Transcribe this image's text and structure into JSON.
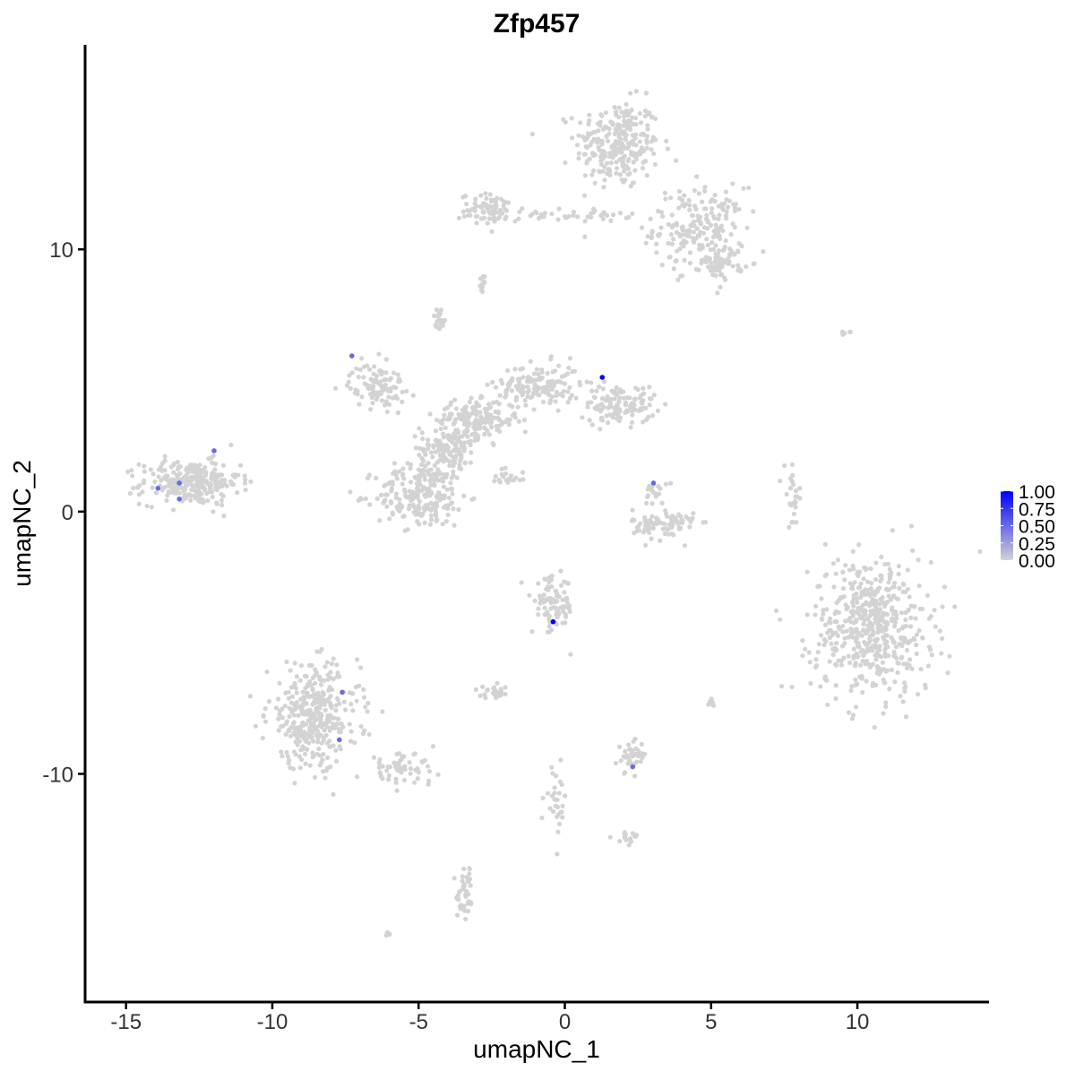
{
  "chart_data": {
    "type": "scatter",
    "title": "Zfp457",
    "xlabel": "umapNC_1",
    "ylabel": "umapNC_2",
    "xlim": [
      -16.4,
      14.5
    ],
    "ylim": [
      -18.7,
      17.8
    ],
    "xticks": [
      "-15",
      "-10",
      "-5",
      "0",
      "5",
      "10"
    ],
    "xtick_values": [
      -15,
      -10,
      -5,
      0,
      5,
      10
    ],
    "yticks": [
      "-10",
      "0",
      "10"
    ],
    "ytick_values": [
      -10,
      0,
      10
    ],
    "grid": false,
    "colors": {
      "low": "#D3D3D3",
      "high": "#0000FF"
    },
    "legend": {
      "placement": "right",
      "type": "colorbar",
      "range": [
        0,
        1
      ],
      "labels": [
        "1.00",
        "0.75",
        "0.50",
        "0.25",
        "0.00"
      ],
      "values": [
        1.0,
        0.75,
        0.5,
        0.25,
        0.0
      ]
    },
    "expression_zero_clusters": [
      {
        "x": 1.8,
        "y": 14.0,
        "sx": 1.2,
        "sy": 1.4,
        "n": 260
      },
      {
        "x": 4.6,
        "y": 10.8,
        "sx": 1.3,
        "sy": 1.3,
        "n": 200
      },
      {
        "x": -2.5,
        "y": 11.5,
        "sx": 0.9,
        "sy": 0.5,
        "n": 80
      },
      {
        "x": 0.3,
        "y": 11.3,
        "sx": 1.6,
        "sy": 0.2,
        "n": 40
      },
      {
        "x": 5.4,
        "y": 9.5,
        "sx": 0.6,
        "sy": 0.5,
        "n": 60
      },
      {
        "x": -12.8,
        "y": 1.1,
        "sx": 1.4,
        "sy": 0.7,
        "n": 260
      },
      {
        "x": -4.9,
        "y": 0.6,
        "sx": 1.3,
        "sy": 1.0,
        "n": 220
      },
      {
        "x": -4.0,
        "y": 2.4,
        "sx": 0.8,
        "sy": 0.8,
        "n": 150
      },
      {
        "x": -3.0,
        "y": 3.5,
        "sx": 1.2,
        "sy": 0.6,
        "n": 160
      },
      {
        "x": -0.9,
        "y": 4.8,
        "sx": 1.2,
        "sy": 0.7,
        "n": 150
      },
      {
        "x": 1.9,
        "y": 4.1,
        "sx": 1.0,
        "sy": 0.6,
        "n": 120
      },
      {
        "x": -6.4,
        "y": 4.8,
        "sx": 0.8,
        "sy": 0.7,
        "n": 100
      },
      {
        "x": -4.3,
        "y": 7.4,
        "sx": 0.15,
        "sy": 0.3,
        "n": 20
      },
      {
        "x": -2.0,
        "y": 1.3,
        "sx": 0.6,
        "sy": 0.4,
        "n": 20
      },
      {
        "x": 3.4,
        "y": -0.5,
        "sx": 0.9,
        "sy": 0.5,
        "n": 90
      },
      {
        "x": 3.1,
        "y": 0.8,
        "sx": 0.3,
        "sy": 0.4,
        "n": 20
      },
      {
        "x": 10.5,
        "y": -4.4,
        "sx": 1.7,
        "sy": 2.2,
        "n": 520
      },
      {
        "x": -8.6,
        "y": -7.8,
        "sx": 1.3,
        "sy": 1.6,
        "n": 360
      },
      {
        "x": -5.6,
        "y": -9.8,
        "sx": 1.0,
        "sy": 0.5,
        "n": 60
      },
      {
        "x": -0.4,
        "y": -3.6,
        "sx": 0.6,
        "sy": 0.9,
        "n": 90
      },
      {
        "x": -2.4,
        "y": -6.9,
        "sx": 0.4,
        "sy": 0.2,
        "n": 25
      },
      {
        "x": 2.3,
        "y": -9.3,
        "sx": 0.4,
        "sy": 0.5,
        "n": 40
      },
      {
        "x": -3.4,
        "y": -14.6,
        "sx": 0.25,
        "sy": 0.9,
        "n": 40
      },
      {
        "x": 7.8,
        "y": 0.5,
        "sx": 0.25,
        "sy": 0.9,
        "n": 25
      },
      {
        "x": -0.3,
        "y": -11.0,
        "sx": 0.3,
        "sy": 1.0,
        "n": 30
      },
      {
        "x": -2.8,
        "y": 8.7,
        "sx": 0.2,
        "sy": 0.3,
        "n": 10
      },
      {
        "x": 2.1,
        "y": -12.4,
        "sx": 0.4,
        "sy": 0.2,
        "n": 15
      },
      {
        "x": 5.0,
        "y": -7.3,
        "sx": 0.1,
        "sy": 0.2,
        "n": 8
      },
      {
        "x": 9.6,
        "y": 6.8,
        "sx": 0.3,
        "sy": 0.1,
        "n": 6
      },
      {
        "x": -6.05,
        "y": -16.1,
        "sx": 0.1,
        "sy": 0.05,
        "n": 4
      }
    ],
    "expressing_points": [
      {
        "x": 1.28,
        "y": 5.12,
        "value": 1.0
      },
      {
        "x": -0.4,
        "y": -4.2,
        "value": 1.0
      },
      {
        "x": -7.28,
        "y": 5.94,
        "value": 0.5
      },
      {
        "x": -11.99,
        "y": 2.32,
        "value": 0.5
      },
      {
        "x": -13.91,
        "y": 0.89,
        "value": 0.5
      },
      {
        "x": -13.18,
        "y": 1.09,
        "value": 0.5
      },
      {
        "x": -13.18,
        "y": 0.48,
        "value": 0.5
      },
      {
        "x": 3.03,
        "y": 1.09,
        "value": 0.5
      },
      {
        "x": -7.61,
        "y": -6.89,
        "value": 0.5
      },
      {
        "x": -7.71,
        "y": -8.7,
        "value": 0.5
      },
      {
        "x": 2.32,
        "y": -9.73,
        "value": 0.5
      }
    ]
  }
}
